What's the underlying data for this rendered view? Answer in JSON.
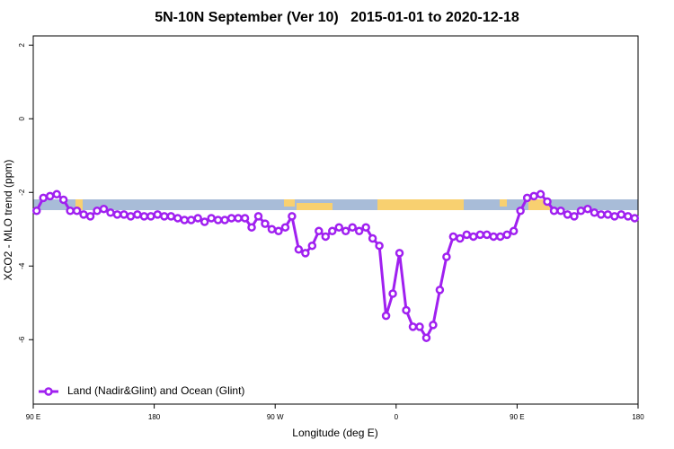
{
  "chart_data": {
    "type": "line",
    "title": "5N-10N September (Ver 10)   2015-01-01 to 2020-12-18",
    "xlabel": "Longitude (deg E)",
    "ylabel": "XCO2 - MLO trend (ppm)",
    "xlim": [
      90,
      540
    ],
    "ylim": [
      -7.75,
      2.25
    ],
    "xticks": [
      {
        "value": 90,
        "label": "90 E"
      },
      180,
      {
        "value": 270,
        "label": "90 W"
      },
      {
        "value": 360,
        "label": "0"
      },
      {
        "value": 450,
        "label": "90 E"
      },
      {
        "value": 540,
        "label": "180"
      }
    ],
    "yticks": [
      2,
      0,
      -2,
      -4,
      -6
    ],
    "legend": "bottom-left",
    "x": [
      92.5,
      97.5,
      102.5,
      107.5,
      112.5,
      117.5,
      122.5,
      127.5,
      132.5,
      137.5,
      142.5,
      147.5,
      152.5,
      157.5,
      162.5,
      167.5,
      172.5,
      177.5,
      182.5,
      187.5,
      192.5,
      197.5,
      202.5,
      207.5,
      212.5,
      217.5,
      222.5,
      227.5,
      232.5,
      237.5,
      242.5,
      247.5,
      252.5,
      257.5,
      262.5,
      267.5,
      272.5,
      277.5,
      282.5,
      287.5,
      292.5,
      297.5,
      302.5,
      307.5,
      312.5,
      317.5,
      322.5,
      327.5,
      332.5,
      337.5,
      342.5,
      347.5,
      352.5,
      357.5,
      362.5,
      367.5,
      372.5,
      377.5,
      382.5,
      387.5,
      392.5,
      397.5,
      402.5,
      407.5,
      412.5,
      417.5,
      422.5,
      427.5,
      432.5,
      437.5,
      442.5,
      447.5,
      452.5,
      457.5,
      462.5,
      467.5,
      472.5,
      477.5,
      482.5,
      487.5,
      492.5,
      497.5,
      502.5,
      507.5,
      512.5,
      517.5,
      522.5,
      527.5,
      532.5,
      537.5
    ],
    "series": [
      {
        "name": "Land (Nadir&Glint) and Ocean (Glint)",
        "color": "#a020f0",
        "values": [
          -2.5,
          -2.15,
          -2.1,
          -2.05,
          -2.2,
          -2.5,
          -2.5,
          -2.6,
          -2.65,
          -2.5,
          -2.45,
          -2.55,
          -2.6,
          -2.6,
          -2.65,
          -2.6,
          -2.65,
          -2.65,
          -2.6,
          -2.65,
          -2.65,
          -2.7,
          -2.75,
          -2.75,
          -2.7,
          -2.8,
          -2.7,
          -2.75,
          -2.75,
          -2.7,
          -2.7,
          -2.7,
          -2.95,
          -2.65,
          -2.85,
          -3.0,
          -3.05,
          -2.95,
          -2.65,
          -3.55,
          -3.65,
          -3.45,
          -3.05,
          -3.2,
          -3.05,
          -2.95,
          -3.05,
          -2.95,
          -3.05,
          -2.95,
          -3.25,
          -3.45,
          -5.35,
          -4.75,
          -3.65,
          -5.2,
          -5.65,
          -5.65,
          -5.95,
          -5.6,
          -4.65,
          -3.75,
          -3.2,
          -3.25,
          -3.15,
          -3.2,
          -3.15,
          -3.15,
          -3.2,
          -3.2,
          -3.15,
          -3.05,
          -2.5,
          -2.15,
          -2.1,
          -2.05,
          -2.25,
          -2.5,
          -2.5,
          -2.6,
          -2.65,
          -2.5,
          -2.45,
          -2.55,
          -2.6,
          -2.6,
          -2.65,
          -2.6,
          -2.65,
          -2.7
        ]
      }
    ]
  }
}
